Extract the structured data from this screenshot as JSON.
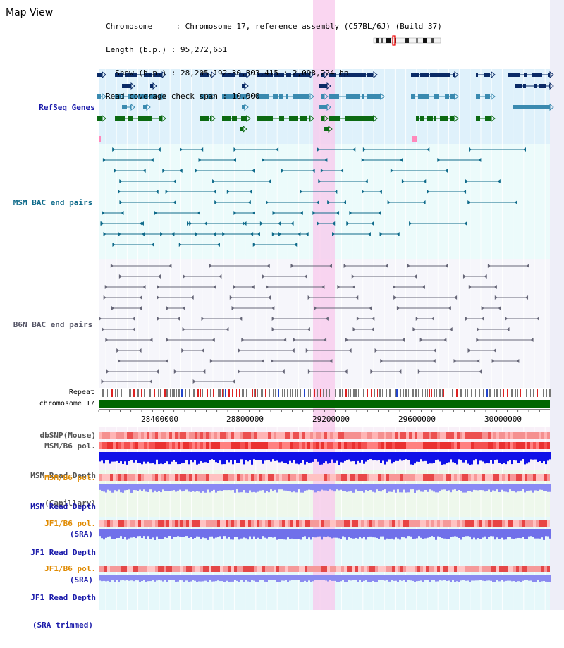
{
  "title": "Map View",
  "info": {
    "line1": "Chromosome     : Chromosome 17, reference assembly (C57BL/6J) (Build 37)",
    "line2": "Length (b.p.) : 95,272,651",
    "line3": "  Show (b.p.) : 28,205,192-30,303,415 : 2,098,224 bp",
    "line4": "Read coverage check span : 10,000"
  },
  "labels": {
    "refseq": "RefSeq Genes",
    "msm_bac": "MSM BAC end pairs",
    "b6n_bac": "B6N BAC end pairs",
    "repeat": "Repeat",
    "chromosome": "chromosome 17",
    "dbsnp": "dbSNP(Mouse)",
    "msm_b6_pol_1": "MSM/B6 pol.",
    "msm_depth_cap_1": "MSM Read Depth",
    "msm_depth_cap_2": "(Capillary)",
    "msm_b6_pol_2": "MSM/B6 pol.",
    "msm_depth_sra_1": "MSM Read Depth",
    "msm_depth_sra_2": "(SRA)",
    "jf1_pol_1": "JF1/B6 pol.",
    "jf1_depth_sra_1": "JF1 Read Depth",
    "jf1_depth_sra_2": "(SRA)",
    "jf1_pol_2": "JF1/B6 pol.",
    "jf1_depth_trim_1": "JF1 Read Depth",
    "jf1_depth_trim_2": "(SRA trimmed)"
  },
  "axis_ticks": [
    "28400000",
    "28800000",
    "29200000",
    "29600000",
    "30000000"
  ],
  "colors": {
    "refseq_label": "#1a1aaa",
    "msm_label": "#0e6a8a",
    "b6n_label": "#555566",
    "pol_orange": "#e08a00",
    "sra_blue": "#1a1aaa",
    "highlight": "#f8c8ec",
    "refseq_bg": "#dff1fb",
    "msm_bg": "#ecfbfb",
    "b6n_bg": "#f6f6fb",
    "chrom_green": "#006600"
  }
}
